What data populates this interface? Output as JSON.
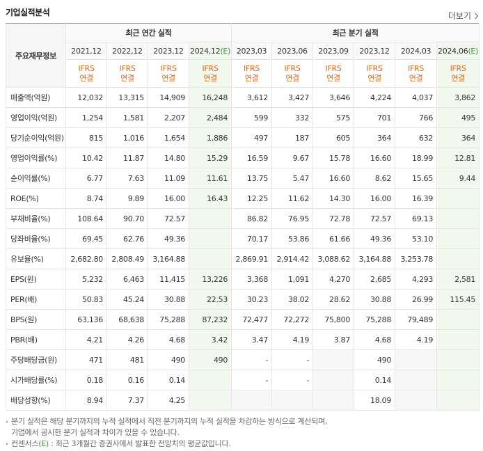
{
  "header": {
    "title": "기업실적분석",
    "more": "더보기"
  },
  "table": {
    "corner": "주요재무정보",
    "annual": {
      "label": "최근 연간 실적",
      "periods": [
        {
          "date": "2021,12",
          "std": "IFRS",
          "basis": "연결"
        },
        {
          "date": "2022,12",
          "std": "IFRS",
          "basis": "연결"
        },
        {
          "date": "2023,12",
          "std": "IFRS",
          "basis": "연결"
        },
        {
          "date": "2024,12",
          "est": "(E)",
          "std": "IFRS",
          "basis": "연결"
        }
      ]
    },
    "quarterly": {
      "label": "최근 분기 실적",
      "periods": [
        {
          "date": "2023,03",
          "std": "IFRS",
          "basis": "연결"
        },
        {
          "date": "2023,06",
          "std": "IFRS",
          "basis": "연결"
        },
        {
          "date": "2023,09",
          "std": "IFRS",
          "basis": "연결"
        },
        {
          "date": "2023,12",
          "std": "IFRS",
          "basis": "연결"
        },
        {
          "date": "2024,03",
          "std": "IFRS",
          "basis": "연결"
        },
        {
          "date": "2024,06",
          "est": "(E)",
          "std": "IFRS",
          "basis": "연결"
        }
      ]
    },
    "sections": [
      [
        {
          "label": "매출액(억원)",
          "annual": [
            "12,032",
            "13,315",
            "14,909",
            "16,248"
          ],
          "quarterly": [
            "3,612",
            "3,427",
            "3,646",
            "4,224",
            "4,037",
            "3,862"
          ]
        },
        {
          "label": "영업이익(억원)",
          "annual": [
            "1,254",
            "1,581",
            "2,207",
            "2,484"
          ],
          "quarterly": [
            "599",
            "332",
            "575",
            "701",
            "766",
            "495"
          ]
        },
        {
          "label": "당기순이익(억원)",
          "annual": [
            "815",
            "1,016",
            "1,654",
            "1,886"
          ],
          "quarterly": [
            "497",
            "187",
            "605",
            "364",
            "632",
            "364"
          ]
        }
      ],
      [
        {
          "label": "영업이익률(%)",
          "annual": [
            "10.42",
            "11.87",
            "14.80",
            "15.29"
          ],
          "quarterly": [
            "16.59",
            "9.67",
            "15.78",
            "16.60",
            "18.99",
            "12.81"
          ]
        },
        {
          "label": "순이익률(%)",
          "annual": [
            "6.77",
            "7.63",
            "11.09",
            "11.61"
          ],
          "quarterly": [
            "13.75",
            "5.47",
            "16.60",
            "8.62",
            "15.65",
            "9.44"
          ]
        },
        {
          "label": "ROE(%)",
          "annual": [
            "8.74",
            "9.89",
            "16.00",
            "16.43"
          ],
          "quarterly": [
            "12.25",
            "11.62",
            "14.30",
            "16.00",
            "16.39",
            null
          ]
        }
      ],
      [
        {
          "label": "부채비율(%)",
          "annual": [
            "108.64",
            "90.70",
            "72.57",
            null
          ],
          "quarterly": [
            "86.82",
            "76.95",
            "72.78",
            "72.57",
            "69.13",
            null
          ]
        },
        {
          "label": "당좌비율(%)",
          "annual": [
            "69.45",
            "62.76",
            "49.36",
            null
          ],
          "quarterly": [
            "70.17",
            "53.86",
            "61.66",
            "49.36",
            "53.10",
            null
          ]
        },
        {
          "label": "유보율(%)",
          "annual": [
            "2,682.80",
            "2,808.49",
            "3,164.88",
            null
          ],
          "quarterly": [
            "2,869.91",
            "2,914.42",
            "3,088.62",
            "3,164.88",
            "3,253.78",
            null
          ]
        }
      ],
      [
        {
          "label": "EPS(원)",
          "annual": [
            "5,232",
            "6,463",
            "11,415",
            "13,226"
          ],
          "quarterly": [
            "3,368",
            "1,091",
            "4,270",
            "2,685",
            "4,293",
            "2,581"
          ]
        },
        {
          "label": "PER(배)",
          "annual": [
            "50.83",
            "45.24",
            "30.88",
            "22.53"
          ],
          "quarterly": [
            "30.23",
            "38.02",
            "28.62",
            "30.88",
            "26.99",
            "115.45"
          ]
        },
        {
          "label": "BPS(원)",
          "annual": [
            "63,136",
            "68,638",
            "75,288",
            "87,232"
          ],
          "quarterly": [
            "72,477",
            "72,272",
            "75,800",
            "75,288",
            "79,489",
            null
          ]
        },
        {
          "label": "PBR(배)",
          "annual": [
            "4.21",
            "4.26",
            "4.68",
            "3.42"
          ],
          "quarterly": [
            "3.47",
            "4.19",
            "3.87",
            "4.68",
            "4.19",
            null
          ]
        }
      ],
      [
        {
          "label": "주당배당금(원)",
          "annual": [
            "471",
            "481",
            "490",
            "490"
          ],
          "quarterly": [
            "-",
            "-",
            null,
            "490",
            null,
            null
          ]
        },
        {
          "label": "시가배당률(%)",
          "annual": [
            "0.18",
            "0.16",
            "0.14",
            null
          ],
          "quarterly": [
            "-",
            "-",
            null,
            "0.14",
            null,
            null
          ]
        },
        {
          "label": "배당성향(%)",
          "annual": [
            "8.94",
            "7.37",
            "4.25",
            null
          ],
          "quarterly": [
            null,
            null,
            null,
            "18.09",
            null,
            null
          ]
        }
      ]
    ]
  },
  "notes": [
    {
      "lines": [
        "분기 실적은 해당 분기까지의 누적 실적에서 직전 분기까지의 누적 실적을 차감하는 방식으로 계산되며,",
        "기업에서 공시한 분기 실적과 차이가 있을 수 있습니다."
      ]
    },
    {
      "term": "컨센서스",
      "mark": "(E)",
      "text": " : 최근 3개월간 증권사에서 발표한 전망치의 평균값입니다."
    }
  ]
}
